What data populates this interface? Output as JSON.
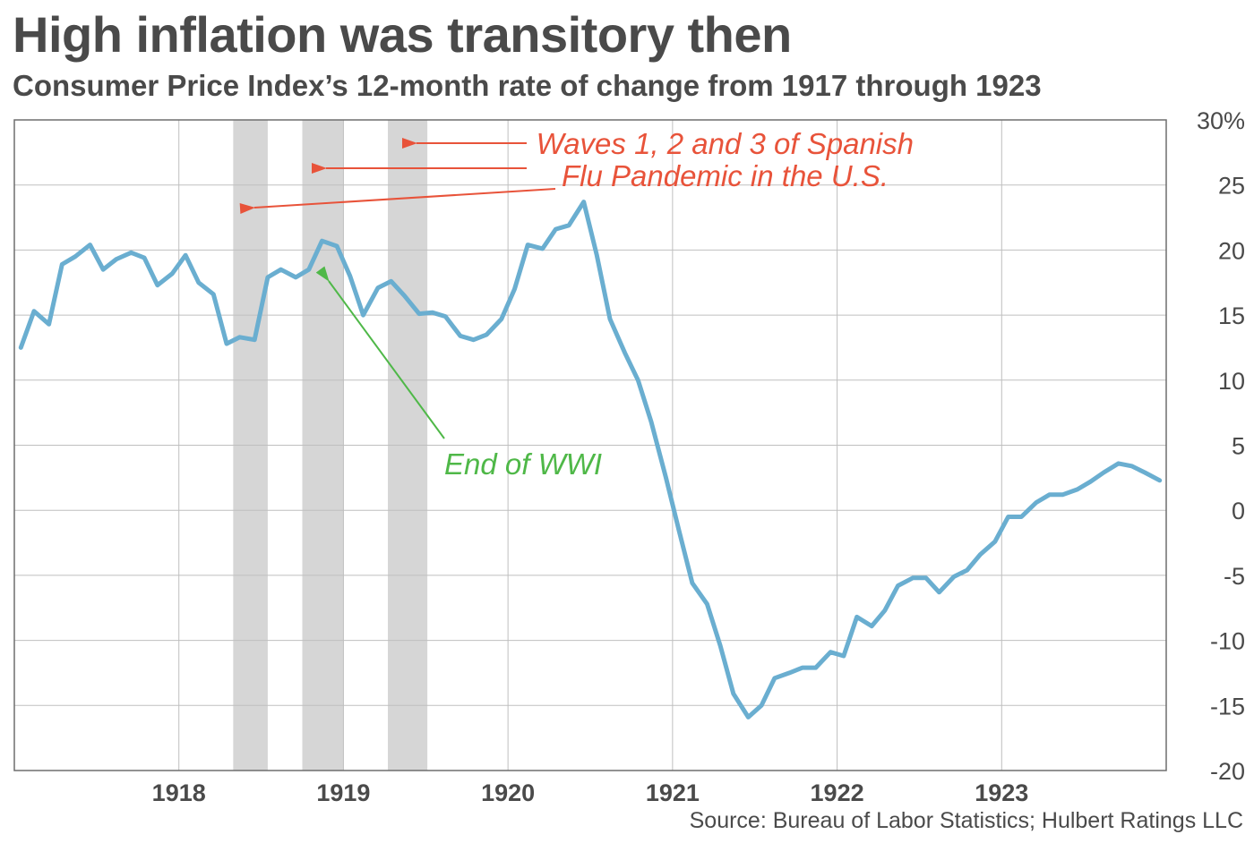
{
  "header": {
    "title": "High inflation was transitory then",
    "subtitle": "Consumer Price Index’s 12-month rate of change from 1917 through 1923"
  },
  "source": "Source: Bureau of Labor Statistics; Hulbert Ratings LLC",
  "colors": {
    "line": "#6aaed0",
    "shade": "#d6d6d6",
    "grid": "#bfbfbf",
    "red_annotation": "#e8533a",
    "green_annotation": "#4fb848",
    "text": "#4a4a4a"
  },
  "chart_data": {
    "type": "line",
    "title": "High inflation was transitory then",
    "subtitle": "Consumer Price Index’s 12-month rate of change from 1917 through 1923",
    "xlabel": "",
    "ylabel": "",
    "xlim": [
      1917.0,
      1924.0
    ],
    "ylim": [
      -20,
      30
    ],
    "y_axis_position": "right",
    "grid": true,
    "x_tick_values": [
      1918,
      1919,
      1920,
      1921,
      1922,
      1923
    ],
    "x_tick_labels": [
      "1918",
      "1919",
      "1920",
      "1921",
      "1922",
      "1923"
    ],
    "y_tick_values": [
      30,
      25,
      20,
      15,
      10,
      5,
      0,
      -5,
      -10,
      -15,
      -20
    ],
    "y_tick_labels": [
      "30%",
      "25",
      "20",
      "15",
      "10",
      "5",
      "0",
      "-5",
      "-10",
      "-15",
      "-20"
    ],
    "shaded_periods": [
      {
        "start": 1918.33,
        "end": 1918.54
      },
      {
        "start": 1918.75,
        "end": 1919.0
      },
      {
        "start": 1919.27,
        "end": 1919.51
      }
    ],
    "series": [
      {
        "x": [
          1917.04,
          1917.12,
          1917.21,
          1917.29,
          1917.37,
          1917.46,
          1917.54,
          1917.62,
          1917.71,
          1917.79,
          1917.87,
          1917.96,
          1918.04,
          1918.12,
          1918.21,
          1918.29,
          1918.37,
          1918.46,
          1918.54,
          1918.62,
          1918.71,
          1918.79,
          1918.87,
          1918.96,
          1919.04,
          1919.12,
          1919.21,
          1919.29,
          1919.37,
          1919.46,
          1919.54,
          1919.62,
          1919.71,
          1919.79,
          1919.87,
          1919.96,
          1920.04,
          1920.12,
          1920.21,
          1920.29,
          1920.37,
          1920.46,
          1920.54,
          1920.62,
          1920.71,
          1920.79,
          1920.87,
          1920.96,
          1921.04,
          1921.12,
          1921.21,
          1921.29,
          1921.37,
          1921.46,
          1921.54,
          1921.62,
          1921.71,
          1921.79,
          1921.87,
          1921.96,
          1922.04,
          1922.12,
          1922.21,
          1922.29,
          1922.37,
          1922.46,
          1922.54,
          1922.62,
          1922.71,
          1922.79,
          1922.87,
          1922.96,
          1923.04,
          1923.12,
          1923.21,
          1923.29,
          1923.37,
          1923.46,
          1923.54,
          1923.62,
          1923.71,
          1923.79,
          1923.87,
          1923.96
        ],
        "y": [
          12.5,
          15.3,
          14.3,
          18.9,
          19.5,
          20.4,
          18.5,
          19.3,
          19.8,
          19.4,
          17.3,
          18.2,
          19.6,
          17.5,
          16.6,
          12.8,
          13.3,
          13.1,
          17.9,
          18.5,
          17.9,
          18.5,
          20.7,
          20.3,
          18.0,
          15.0,
          17.1,
          17.6,
          16.5,
          15.1,
          15.2,
          14.9,
          13.4,
          13.1,
          13.5,
          14.7,
          17.0,
          20.4,
          20.1,
          21.6,
          21.9,
          23.7,
          19.6,
          14.7,
          12.1,
          10.0,
          6.8,
          2.5,
          -1.6,
          -5.6,
          -7.2,
          -10.4,
          -14.1,
          -15.9,
          -15.0,
          -12.9,
          -12.5,
          -12.1,
          -12.1,
          -10.9,
          -11.2,
          -8.2,
          -8.9,
          -7.7,
          -5.8,
          -5.2,
          -5.2,
          -6.3,
          -5.1,
          -4.6,
          -3.4,
          -2.4,
          -0.5,
          -0.5,
          0.6,
          1.2,
          1.2,
          1.6,
          2.2,
          2.9,
          3.6,
          3.4,
          2.9,
          2.3
        ]
      }
    ],
    "annotations": [
      {
        "text": "Waves 1, 2 and 3 of Spanish",
        "color": "red"
      },
      {
        "text": "Flu Pandemic in the U.S.",
        "color": "red"
      },
      {
        "text": "End of WWI",
        "color": "green"
      }
    ]
  }
}
